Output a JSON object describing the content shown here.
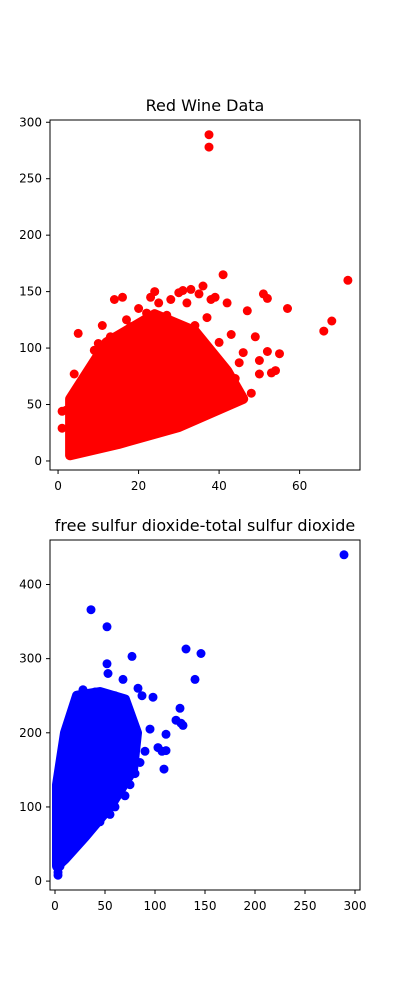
{
  "chart_data": [
    {
      "type": "scatter",
      "title": "Red Wine Data",
      "xlabel": "",
      "ylabel": "",
      "xlim": [
        -2,
        75
      ],
      "ylim": [
        -8,
        302
      ],
      "xticks": [
        0,
        20,
        40,
        60
      ],
      "yticks": [
        0,
        50,
        100,
        150,
        200,
        250,
        300
      ],
      "grid": false,
      "color": "#ff0000",
      "points": [
        [
          1,
          29
        ],
        [
          1,
          44
        ],
        [
          2,
          45
        ],
        [
          3,
          12
        ],
        [
          3,
          20
        ],
        [
          4,
          77
        ],
        [
          5,
          63
        ],
        [
          5,
          113
        ],
        [
          6,
          27
        ],
        [
          7,
          40
        ],
        [
          8,
          55
        ],
        [
          9,
          98
        ],
        [
          10,
          86
        ],
        [
          10,
          104
        ],
        [
          11,
          120
        ],
        [
          12,
          90
        ],
        [
          13,
          110
        ],
        [
          14,
          143
        ],
        [
          15,
          101
        ],
        [
          16,
          145
        ],
        [
          17,
          125
        ],
        [
          18,
          119
        ],
        [
          19,
          95
        ],
        [
          20,
          135
        ],
        [
          21,
          121
        ],
        [
          22,
          131
        ],
        [
          23,
          145
        ],
        [
          24,
          150
        ],
        [
          25,
          140
        ],
        [
          26,
          118
        ],
        [
          27,
          129
        ],
        [
          28,
          143
        ],
        [
          30,
          149
        ],
        [
          31,
          151
        ],
        [
          32,
          140
        ],
        [
          33,
          152
        ],
        [
          34,
          120
        ],
        [
          35,
          148
        ],
        [
          36,
          155
        ],
        [
          37,
          127
        ],
        [
          37.5,
          289
        ],
        [
          37.5,
          278
        ],
        [
          38,
          143
        ],
        [
          39,
          145
        ],
        [
          41,
          165
        ],
        [
          42,
          140
        ],
        [
          43,
          112
        ],
        [
          45,
          87
        ],
        [
          46,
          96
        ],
        [
          47,
          133
        ],
        [
          49,
          110
        ],
        [
          50,
          89
        ],
        [
          51,
          148
        ],
        [
          52,
          97
        ],
        [
          52,
          144
        ],
        [
          53,
          78
        ],
        [
          54,
          80
        ],
        [
          55,
          95
        ],
        [
          57,
          135
        ],
        [
          66,
          115
        ],
        [
          68,
          124
        ],
        [
          72,
          160
        ],
        [
          40,
          105
        ],
        [
          44,
          73
        ],
        [
          48,
          60
        ],
        [
          50,
          77
        ],
        [
          36,
          65
        ],
        [
          34,
          100
        ],
        [
          30,
          88
        ],
        [
          26,
          80
        ],
        [
          22,
          72
        ],
        [
          18,
          60
        ],
        [
          14,
          50
        ],
        [
          12,
          40
        ],
        [
          10,
          35
        ],
        [
          8,
          28
        ],
        [
          6,
          18
        ],
        [
          5,
          10
        ],
        [
          4,
          8
        ],
        [
          3,
          6
        ]
      ],
      "dense_region": [
        [
          3,
          5
        ],
        [
          3,
          55
        ],
        [
          12,
          105
        ],
        [
          24,
          130
        ],
        [
          34,
          115
        ],
        [
          42,
          80
        ],
        [
          46,
          55
        ],
        [
          30,
          30
        ],
        [
          15,
          15
        ]
      ]
    },
    {
      "type": "scatter",
      "title": "free sulfur dioxide-total sulfur dioxide",
      "xlabel": "",
      "ylabel": "",
      "xlim": [
        -5,
        305
      ],
      "ylim": [
        -12,
        460
      ],
      "xticks": [
        0,
        50,
        100,
        150,
        200,
        250,
        300
      ],
      "yticks": [
        0,
        100,
        200,
        300,
        400
      ],
      "grid": false,
      "color": "#0000ff",
      "points": [
        [
          289,
          440
        ],
        [
          36,
          366
        ],
        [
          52,
          343
        ],
        [
          52,
          293
        ],
        [
          77,
          303
        ],
        [
          131,
          313
        ],
        [
          146,
          307
        ],
        [
          140,
          272
        ],
        [
          53,
          280
        ],
        [
          68,
          272
        ],
        [
          83,
          260
        ],
        [
          87,
          250
        ],
        [
          98,
          248
        ],
        [
          95,
          205
        ],
        [
          103,
          180
        ],
        [
          107,
          175
        ],
        [
          109,
          151
        ],
        [
          111,
          176
        ],
        [
          111,
          198
        ],
        [
          121,
          217
        ],
        [
          125,
          233
        ],
        [
          128,
          210
        ],
        [
          126,
          213
        ],
        [
          90,
          175
        ],
        [
          85,
          160
        ],
        [
          80,
          145
        ],
        [
          75,
          130
        ],
        [
          70,
          115
        ],
        [
          60,
          100
        ],
        [
          55,
          90
        ],
        [
          45,
          80
        ],
        [
          35,
          70
        ],
        [
          25,
          55
        ],
        [
          15,
          40
        ],
        [
          8,
          30
        ],
        [
          5,
          20
        ],
        [
          3,
          12
        ],
        [
          3,
          8
        ],
        [
          2,
          45
        ],
        [
          2,
          60
        ],
        [
          2,
          80
        ],
        [
          3,
          100
        ],
        [
          4,
          125
        ],
        [
          6,
          150
        ],
        [
          8,
          175
        ],
        [
          10,
          195
        ],
        [
          15,
          215
        ],
        [
          20,
          240
        ],
        [
          22,
          250
        ],
        [
          28,
          258
        ],
        [
          40,
          255
        ],
        [
          60,
          250
        ],
        [
          72,
          230
        ],
        [
          65,
          200
        ],
        [
          58,
          180
        ],
        [
          50,
          160
        ],
        [
          42,
          140
        ],
        [
          32,
          120
        ],
        [
          22,
          100
        ],
        [
          12,
          80
        ]
      ],
      "dense_region": [
        [
          2,
          20
        ],
        [
          2,
          130
        ],
        [
          10,
          200
        ],
        [
          22,
          250
        ],
        [
          45,
          255
        ],
        [
          70,
          245
        ],
        [
          82,
          200
        ],
        [
          78,
          150
        ],
        [
          55,
          100
        ],
        [
          30,
          60
        ],
        [
          10,
          30
        ]
      ]
    }
  ]
}
